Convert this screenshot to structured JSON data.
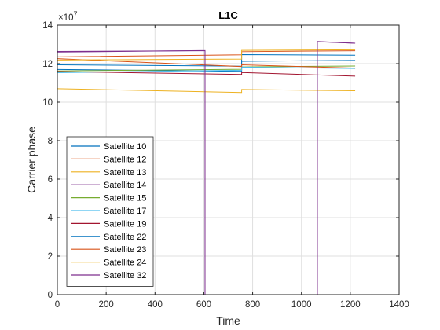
{
  "chart_data": {
    "type": "line",
    "title": "L1C",
    "xlabel": "Time",
    "ylabel": "Carrier phase",
    "xlim": [
      0,
      1400
    ],
    "ylim": [
      0,
      140000000
    ],
    "y_exponent_label": "×10⁷",
    "y_exponent_base": "×10",
    "y_exponent_power": "7",
    "xticks": [
      0,
      200,
      400,
      600,
      800,
      1000,
      1200,
      1400
    ],
    "xtick_labels": [
      "0",
      "200",
      "400",
      "600",
      "800",
      "1000",
      "1200",
      "1400"
    ],
    "yticks": [
      0,
      20000000,
      40000000,
      60000000,
      80000000,
      100000000,
      120000000,
      140000000
    ],
    "ytick_labels": [
      "0",
      "2",
      "4",
      "6",
      "8",
      "10",
      "12",
      "14"
    ],
    "grid": true,
    "legend_position": "lower-left",
    "series": [
      {
        "name": "Satellite 10",
        "color": "#0072BD",
        "x": [
          0,
          755,
          755,
          1220
        ],
        "y": [
          117000000,
          116000000,
          121200000,
          121700000
        ]
      },
      {
        "name": "Satellite 12",
        "color": "#D95319",
        "x": [
          0,
          755,
          755,
          1220
        ],
        "y": [
          123500000,
          124600000,
          126200000,
          126700000
        ]
      },
      {
        "name": "Satellite 13",
        "color": "#EDB120",
        "x": [
          0,
          755,
          755,
          1220
        ],
        "y": [
          107000000,
          105000000,
          106600000,
          105900000
        ]
      },
      {
        "name": "Satellite 14",
        "color": "#7E2F8E",
        "x": [
          0,
          605,
          605,
          1065,
          1065,
          1220
        ],
        "y": [
          126000000,
          126800000,
          0,
          0,
          131400000,
          130600000
        ]
      },
      {
        "name": "Satellite 15",
        "color": "#77AC30",
        "x": [
          0,
          755,
          755,
          1220
        ],
        "y": [
          116200000,
          117100000,
          118300000,
          118800000
        ]
      },
      {
        "name": "Satellite 17",
        "color": "#4DBEEE",
        "x": [
          0,
          755,
          755,
          1220
        ],
        "y": [
          115300000,
          116600000,
          118200000,
          117500000
        ]
      },
      {
        "name": "Satellite 19",
        "color": "#A2142F",
        "x": [
          0,
          755,
          755,
          1220
        ],
        "y": [
          115900000,
          114400000,
          115400000,
          113500000
        ]
      },
      {
        "name": "Satellite 22",
        "color": "#0072BD",
        "x": [
          0,
          755,
          755,
          1220
        ],
        "y": [
          119400000,
          118700000,
          124700000,
          124400000
        ]
      },
      {
        "name": "Satellite 23",
        "color": "#D95319",
        "x": [
          0,
          755,
          755,
          1220
        ],
        "y": [
          122600000,
          118500000,
          119400000,
          117700000
        ]
      },
      {
        "name": "Satellite 24",
        "color": "#EDB120",
        "x": [
          0,
          755,
          755,
          1220
        ],
        "y": [
          121900000,
          122400000,
          126900000,
          127200000
        ]
      },
      {
        "name": "Satellite 32",
        "color": "#7E2F8E",
        "x": [
          0,
          605,
          605,
          1065,
          1065,
          1220
        ],
        "y": [
          126300000,
          126700000,
          0,
          0,
          131500000,
          130600000
        ]
      }
    ]
  }
}
